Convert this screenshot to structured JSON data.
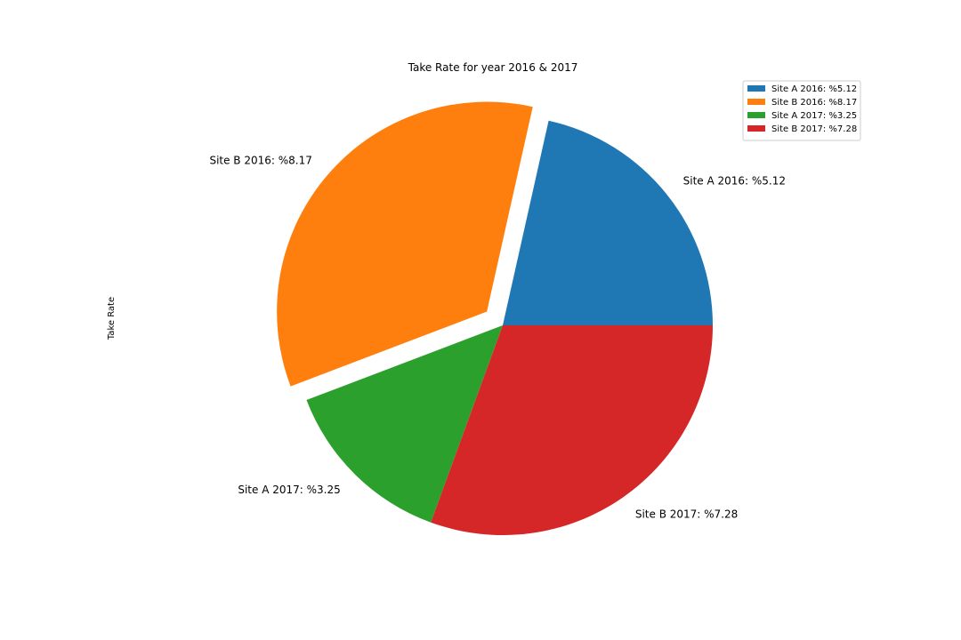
{
  "chart_data": {
    "type": "pie",
    "title": "Take Rate for year 2016 & 2017",
    "ylabel": "Take Rate",
    "slices": [
      {
        "label": "Site A 2016: %5.12",
        "value": 5.12,
        "color": "#1f77b4",
        "explode": 0
      },
      {
        "label": "Site B 2016: %8.17",
        "value": 8.17,
        "color": "#ff7f0e",
        "explode": 0.1
      },
      {
        "label": "Site A 2017: %3.25",
        "value": 3.25,
        "color": "#2ca02c",
        "explode": 0
      },
      {
        "label": "Site B 2017: %7.28",
        "value": 7.28,
        "color": "#d62728",
        "explode": 0
      }
    ],
    "legend": {
      "location": "top-right",
      "entries": [
        "Site A 2016: %5.12",
        "Site B 2016: %8.17",
        "Site A 2017: %3.25",
        "Site B 2017: %7.28"
      ]
    }
  }
}
